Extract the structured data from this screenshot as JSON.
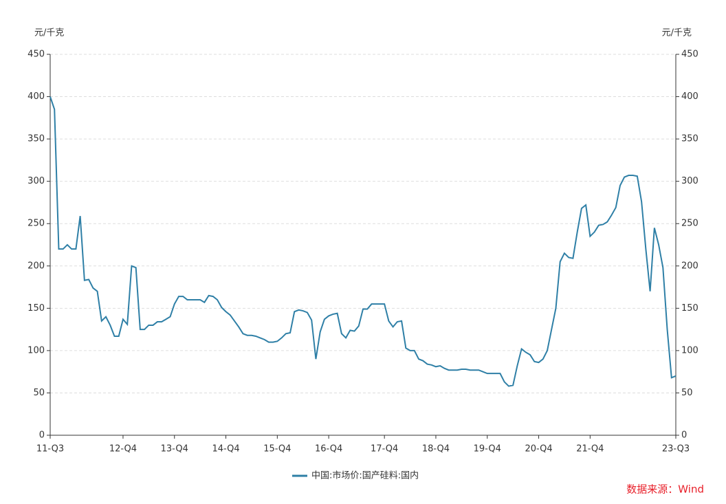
{
  "chart_data": {
    "type": "line",
    "y_label": "元/千克",
    "y2_label": "元/千克",
    "source": "数据来源：Wind",
    "categories": [
      "11-Q3",
      null,
      null,
      null,
      null,
      null,
      null,
      null,
      null,
      null,
      null,
      null,
      null,
      null,
      null,
      null,
      null,
      "12-Q4",
      null,
      null,
      null,
      null,
      null,
      null,
      null,
      null,
      null,
      null,
      null,
      "13-Q4",
      null,
      null,
      null,
      null,
      null,
      null,
      null,
      null,
      null,
      null,
      null,
      "14-Q4",
      null,
      null,
      null,
      null,
      null,
      null,
      null,
      null,
      null,
      null,
      null,
      "15-Q4",
      null,
      null,
      null,
      null,
      null,
      null,
      null,
      null,
      null,
      null,
      null,
      "16-Q4",
      null,
      null,
      null,
      null,
      null,
      null,
      null,
      null,
      null,
      null,
      null,
      null,
      "17-Q4",
      null,
      null,
      null,
      null,
      null,
      null,
      null,
      null,
      null,
      null,
      null,
      "18-Q4",
      null,
      null,
      null,
      null,
      null,
      null,
      null,
      null,
      null,
      null,
      null,
      "19-Q4",
      null,
      null,
      null,
      null,
      null,
      null,
      null,
      null,
      null,
      null,
      null,
      "20-Q4",
      null,
      null,
      null,
      null,
      null,
      null,
      null,
      null,
      null,
      null,
      null,
      "21-Q4",
      null,
      null,
      null,
      null,
      null,
      null,
      null,
      null,
      null,
      null,
      null,
      null,
      null,
      null,
      null,
      null,
      null,
      null,
      null,
      "23-Q3"
    ],
    "series": [
      {
        "name": "中国:市场价:国产硅料:国内",
        "color": "#2e7fa6",
        "values": [
          400,
          385,
          220,
          220,
          225,
          220,
          220,
          259,
          183,
          184,
          174,
          170,
          135,
          140,
          130,
          117,
          117,
          137,
          131,
          200,
          198,
          125,
          125,
          130,
          130,
          134,
          134,
          137,
          140,
          155,
          164,
          164,
          160,
          160,
          160,
          160,
          157,
          165,
          164,
          160,
          151,
          146,
          142,
          135,
          128,
          120,
          118,
          118,
          117,
          115,
          113,
          110,
          110,
          111,
          115,
          120,
          121,
          146,
          148,
          147,
          145,
          136,
          90,
          122,
          137,
          141,
          143,
          144,
          120,
          115,
          124,
          123,
          129,
          149,
          149,
          155,
          155,
          155,
          155,
          135,
          128,
          134,
          135,
          103,
          100,
          100,
          90,
          88,
          84,
          83,
          81,
          82,
          79,
          77,
          77,
          77,
          78,
          78,
          77,
          77,
          77,
          75,
          73,
          73,
          73,
          73,
          63,
          58,
          59,
          82,
          102,
          98,
          95,
          87,
          86,
          90,
          100,
          125,
          150,
          205,
          215,
          210,
          209,
          240,
          268,
          272,
          235,
          240,
          248,
          249,
          252,
          260,
          269,
          295,
          305,
          307,
          307,
          306,
          276,
          220,
          170,
          245,
          225,
          198,
          125,
          68,
          70
        ]
      }
    ],
    "ylim": [
      0,
      450
    ],
    "yticks": [
      0,
      50,
      100,
      150,
      200,
      250,
      300,
      350,
      400,
      450
    ],
    "y2lim": [
      0,
      450
    ],
    "y2ticks": [
      0,
      50,
      100,
      150,
      200,
      250,
      300,
      350,
      400,
      450
    ],
    "grid": true,
    "legend": "bottom"
  }
}
